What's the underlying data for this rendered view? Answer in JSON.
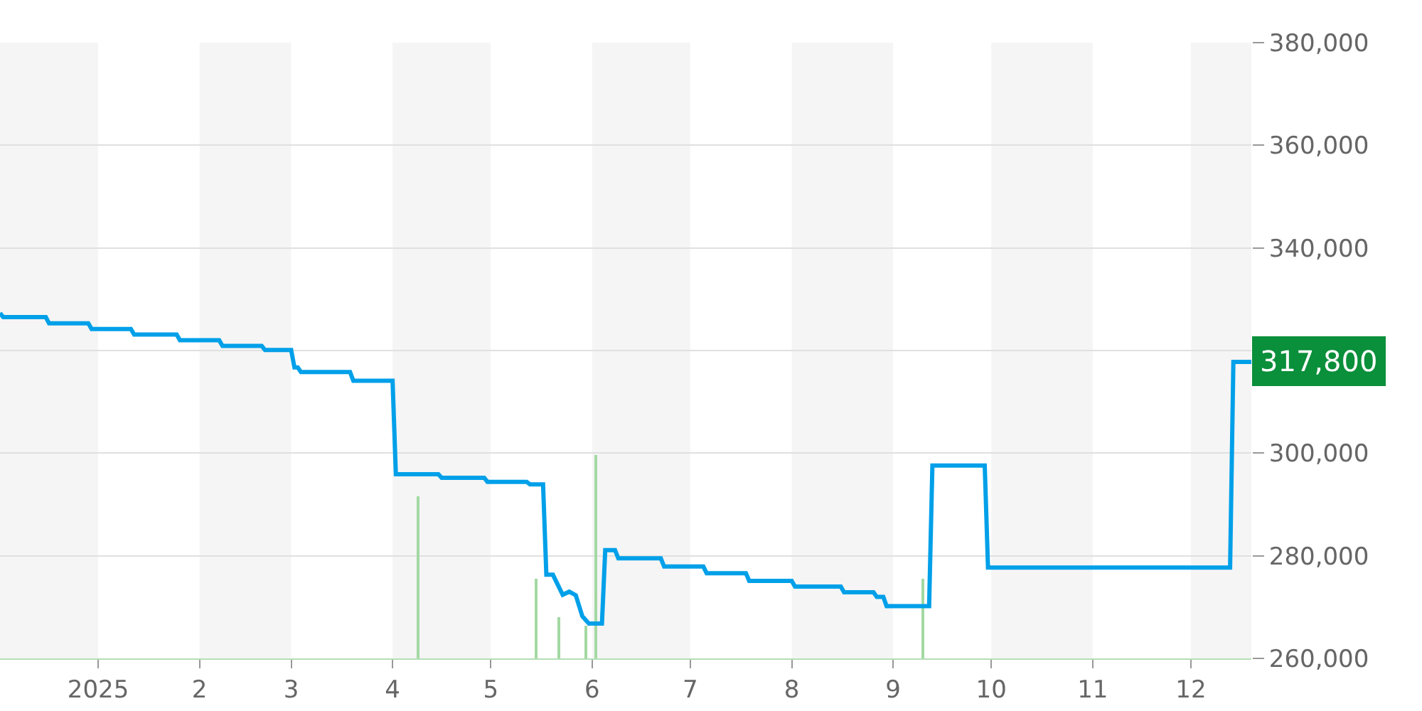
{
  "chart_data": {
    "type": "line",
    "xlim": [
      "2024-12-02",
      "2025-12-19T12:00"
    ],
    "xticks": [
      {
        "value": "2025-01-01",
        "label": "2025"
      },
      {
        "value": "2025-02-01",
        "label": "2"
      },
      {
        "value": "2025-03-01",
        "label": "3"
      },
      {
        "value": "2025-04-01",
        "label": "4"
      },
      {
        "value": "2025-05-01",
        "label": "5"
      },
      {
        "value": "2025-06-01",
        "label": "6"
      },
      {
        "value": "2025-07-01",
        "label": "7"
      },
      {
        "value": "2025-08-01",
        "label": "8"
      },
      {
        "value": "2025-09-01",
        "label": "9"
      },
      {
        "value": "2025-10-01",
        "label": "10"
      },
      {
        "value": "2025-11-01",
        "label": "11"
      },
      {
        "value": "2025-12-01",
        "label": "12"
      }
    ],
    "ylim": [
      260000,
      380000
    ],
    "yticks": [
      {
        "value": 260000,
        "label": "260,000"
      },
      {
        "value": 280000,
        "label": "280,000"
      },
      {
        "value": 300000,
        "label": "300,000"
      },
      {
        "value": 320000,
        "label": null
      },
      {
        "value": 340000,
        "label": "340,000"
      },
      {
        "value": 360000,
        "label": "360,000"
      },
      {
        "value": 380000,
        "label": "380,000"
      }
    ],
    "grid": "y",
    "bands": [
      {
        "axis": "x",
        "from": "2024-12-02",
        "to": "2025-01-01",
        "color": "#f5f5f5"
      },
      {
        "axis": "x",
        "from": "2025-02-01",
        "to": "2025-03-01",
        "color": "#f5f5f5"
      },
      {
        "axis": "x",
        "from": "2025-04-01",
        "to": "2025-05-01",
        "color": "#f5f5f5"
      },
      {
        "axis": "x",
        "from": "2025-06-01",
        "to": "2025-07-01",
        "color": "#f5f5f5"
      },
      {
        "axis": "x",
        "from": "2025-08-01",
        "to": "2025-09-01",
        "color": "#f5f5f5"
      },
      {
        "axis": "x",
        "from": "2025-10-01",
        "to": "2025-11-01",
        "color": "#f5f5f5"
      },
      {
        "axis": "x",
        "from": "2025-12-01",
        "to": "2025-12-19T12:00",
        "color": "#f5f5f5"
      }
    ],
    "series": [
      {
        "type": "bar",
        "color": "#a3d9a3",
        "x": [
          "2025-04-09",
          "2025-05-15",
          "2025-05-22",
          "2025-05-30",
          "2025-06-02",
          "2025-09-10"
        ],
        "base": [
          260000,
          260000,
          260000,
          260000,
          260000,
          260000
        ],
        "values": [
          31600,
          15600,
          8000,
          6400,
          39700,
          15600
        ]
      },
      {
        "color": "#00a0e9",
        "x": [
          "2024-12-02",
          "2024-12-03",
          "2024-12-16",
          "2024-12-17",
          "2024-12-29",
          "2024-12-30",
          "2025-01-11",
          "2025-01-12",
          "2025-01-25",
          "2025-01-26",
          "2025-02-07",
          "2025-02-08",
          "2025-02-20",
          "2025-02-21",
          "2025-03-01",
          "2025-03-02",
          "2025-03-03",
          "2025-03-04",
          "2025-03-19",
          "2025-03-20",
          "2025-04-01",
          "2025-04-02",
          "2025-04-15",
          "2025-04-16",
          "2025-04-29",
          "2025-04-30",
          "2025-05-12",
          "2025-05-13",
          "2025-05-17",
          "2025-05-18",
          "2025-05-20",
          "2025-05-23",
          "2025-05-25",
          "2025-05-27",
          "2025-05-29",
          "2025-05-31",
          "2025-06-04",
          "2025-06-05",
          "2025-06-08",
          "2025-06-09",
          "2025-06-22",
          "2025-06-23",
          "2025-07-05",
          "2025-07-06",
          "2025-07-18",
          "2025-07-19",
          "2025-08-01",
          "2025-08-02",
          "2025-08-16",
          "2025-08-17",
          "2025-08-26",
          "2025-08-27",
          "2025-08-29",
          "2025-08-30",
          "2025-09-12",
          "2025-09-13",
          "2025-09-29",
          "2025-09-30",
          "2025-12-13",
          "2025-12-14",
          "2025-12-19T12:00"
        ],
        "values": [
          327300,
          326500,
          326500,
          325300,
          325300,
          324200,
          324200,
          323100,
          323100,
          322000,
          322000,
          320900,
          320900,
          320100,
          320100,
          316700,
          316700,
          315800,
          315800,
          314100,
          314100,
          295900,
          295900,
          295200,
          295200,
          294400,
          294400,
          293900,
          293900,
          276300,
          276300,
          272400,
          273000,
          272300,
          268200,
          266800,
          266800,
          281100,
          281100,
          279500,
          279500,
          277900,
          277900,
          276600,
          276600,
          275100,
          275100,
          274000,
          274000,
          272900,
          272900,
          272000,
          272000,
          270200,
          270200,
          297600,
          297600,
          277700,
          277700,
          317800,
          317800
        ]
      }
    ],
    "annotations": [
      {
        "text": "317,800",
        "x": "2025-12-19T12:00",
        "y": 317800
      }
    ]
  }
}
